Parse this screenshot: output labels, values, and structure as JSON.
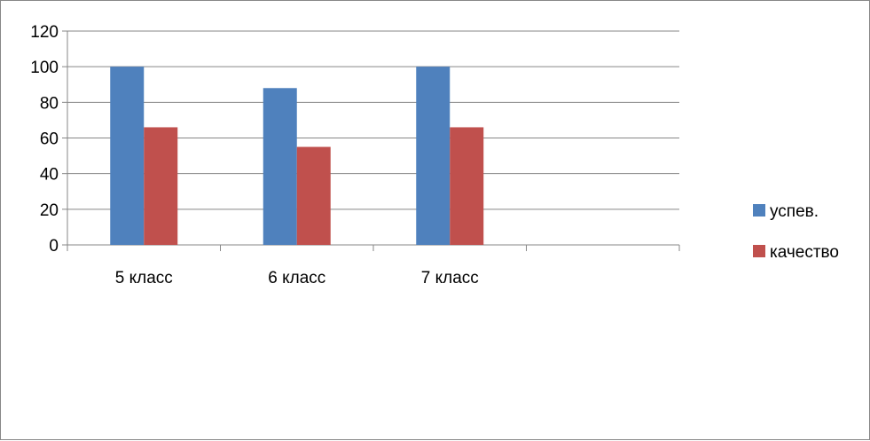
{
  "chart_data": {
    "type": "bar",
    "title": "",
    "xlabel": "",
    "ylabel": "",
    "categories": [
      "5 класс",
      "6 класс",
      "7 класс",
      ""
    ],
    "series": [
      {
        "name": "успев.",
        "color": "#4F81BD",
        "values": [
          100,
          88,
          100,
          null
        ]
      },
      {
        "name": "качество",
        "color": "#C0504D",
        "values": [
          66,
          55,
          66,
          null
        ]
      }
    ],
    "ylim": [
      0,
      120
    ],
    "yticks": [
      0,
      20,
      40,
      60,
      80,
      100,
      120
    ],
    "grid": true,
    "legend_position": "right"
  }
}
